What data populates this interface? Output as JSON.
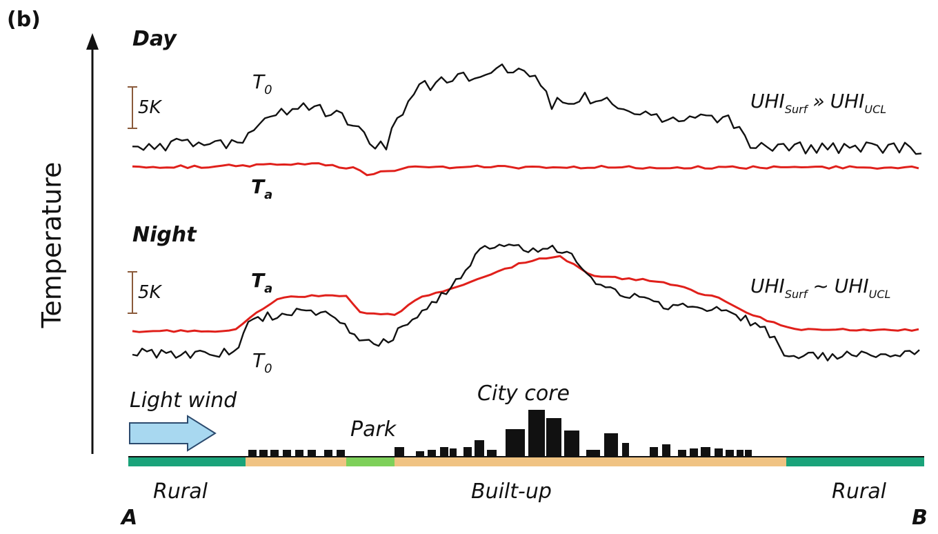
{
  "panel_label": "(b)",
  "y_axis_label": "Temperature",
  "day": {
    "title": "Day",
    "scale_label": "5K",
    "t0_label": {
      "base": "T",
      "sub": "0"
    },
    "ta_label": {
      "base": "T",
      "sub": "a"
    },
    "relation": {
      "left": "UHI",
      "left_sub": "Surf",
      "op": "»",
      "right": "UHI",
      "right_sub": "UCL"
    }
  },
  "night": {
    "title": "Night",
    "scale_label": "5K",
    "ta_label": {
      "base": "T",
      "sub": "a"
    },
    "t0_label": {
      "base": "T",
      "sub": "0"
    },
    "relation": {
      "left": "UHI",
      "left_sub": "Surf",
      "op": "~",
      "right": "UHI",
      "right_sub": "UCL"
    }
  },
  "wind_label": "Light wind",
  "city_core_label": "City core",
  "park_label": "Park",
  "zone_labels": {
    "rural_left": "Rural",
    "built_up": "Built-up",
    "rural_right": "Rural"
  },
  "endpoints": {
    "start": "A",
    "end": "B"
  },
  "colors": {
    "surface_temp_line": "#111111",
    "air_temp_line": "#e0201b",
    "rural_ground": "#1aa37a",
    "built_ground": "#f0c383",
    "park_ground": "#7ed05a",
    "wind_arrow": "#a8d8f0",
    "buildings": "#111111"
  },
  "chart_data": {
    "type": "line",
    "transect": [
      "A",
      "B"
    ],
    "scale_bar": "5K",
    "series": []
  }
}
